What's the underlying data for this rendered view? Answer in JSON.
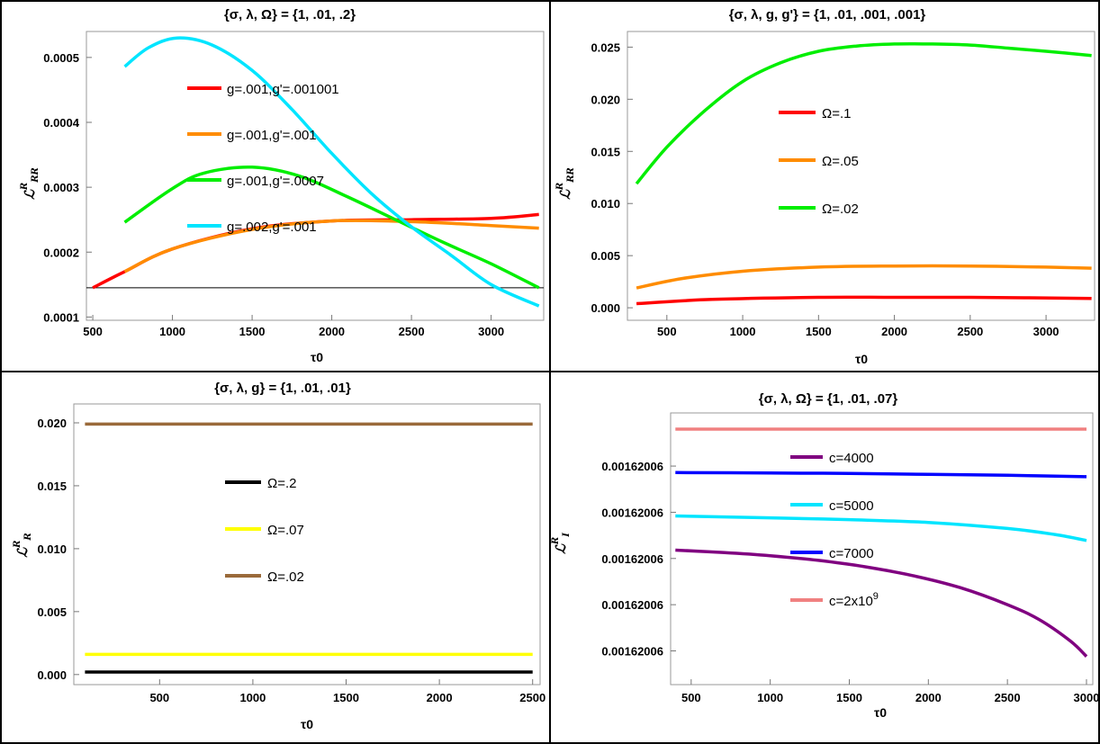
{
  "chart_data": [
    {
      "type": "line",
      "title": "{σ, λ, Ω} = {1, .01, .2}",
      "xlabel": "τ0",
      "ylabel": {
        "base": "ℒ",
        "sup": "R",
        "sub": "RR"
      },
      "xlim": [
        460,
        3330
      ],
      "ylim": [
        9.5e-05,
        0.00054
      ],
      "xticks": [
        500,
        1000,
        1500,
        2000,
        2500,
        3000
      ],
      "yticks": [
        0.0001,
        0.0002,
        0.0003,
        0.0004,
        0.0005
      ],
      "ytick_labels": [
        "0.0001",
        "0.0002",
        "0.0003",
        "0.0004",
        "0.0005"
      ],
      "hlines": [
        {
          "y": 0.000145,
          "color": "#000000"
        }
      ],
      "series": [
        {
          "name": "g=.001,g'=.001001",
          "color": "#ff0000",
          "x": [
            500,
            700,
            1000,
            1500,
            2000,
            2500,
            3000,
            3300
          ],
          "y": [
            0.000145,
            0.00017,
            0.000205,
            0.000236,
            0.000248,
            0.00025,
            0.000252,
            0.000258
          ]
        },
        {
          "name": "g=.001,g'=.001",
          "color": "#ff8c00",
          "x": [
            700,
            1000,
            1500,
            2000,
            2500,
            3000,
            3300
          ],
          "y": [
            0.00017,
            0.000205,
            0.000235,
            0.000248,
            0.000247,
            0.000241,
            0.000237
          ]
        },
        {
          "name": "g=.001,g'=.0007",
          "color": "#00ee00",
          "x": [
            700,
            1000,
            1200,
            1500,
            1800,
            2100,
            2400,
            2700,
            3000,
            3300
          ],
          "y": [
            0.000246,
            0.000298,
            0.000322,
            0.000331,
            0.000317,
            0.000285,
            0.00025,
            0.000215,
            0.000182,
            0.000145
          ]
        },
        {
          "name": "g=.002,g'=.001",
          "color": "#00e5ff",
          "x": [
            700,
            850,
            1030,
            1250,
            1500,
            1750,
            2000,
            2250,
            2500,
            2750,
            3000,
            3300
          ],
          "y": [
            0.000486,
            0.000515,
            0.00053,
            0.000519,
            0.00048,
            0.00042,
            0.000352,
            0.00029,
            0.000239,
            0.000195,
            0.00015,
            0.000117
          ]
        }
      ]
    },
    {
      "type": "line",
      "title": "{σ, λ, g, g'} = {1, .01, .001, .001}",
      "xlabel": "τ0",
      "ylabel": {
        "base": "ℒ",
        "sup": "R",
        "sub": "RR"
      },
      "xlim": [
        240,
        3320
      ],
      "ylim": [
        -0.0012,
        0.0265
      ],
      "xticks": [
        500,
        1000,
        1500,
        2000,
        2500,
        3000
      ],
      "yticks": [
        0,
        0.005,
        0.01,
        0.015,
        0.02,
        0.025
      ],
      "ytick_labels": [
        "0.000",
        "0.005",
        "0.010",
        "0.015",
        "0.020",
        "0.025"
      ],
      "hlines": [],
      "series": [
        {
          "name": "Ω=.1",
          "color": "#ff0000",
          "x": [
            300,
            800,
            1500,
            2000,
            2500,
            3300
          ],
          "y": [
            0.0004,
            0.0008,
            0.001,
            0.001,
            0.001,
            0.0009
          ]
        },
        {
          "name": "Ω=.05",
          "color": "#ff8c00",
          "x": [
            300,
            600,
            1000,
            1500,
            2000,
            2500,
            3000,
            3300
          ],
          "y": [
            0.0019,
            0.0028,
            0.0035,
            0.0039,
            0.004,
            0.004,
            0.0039,
            0.0038
          ]
        },
        {
          "name": "Ω=.02",
          "color": "#00ee00",
          "x": [
            300,
            500,
            750,
            1000,
            1250,
            1500,
            1750,
            2000,
            2250,
            2500,
            2750,
            3000,
            3300
          ],
          "y": [
            0.0119,
            0.0154,
            0.0189,
            0.0217,
            0.0235,
            0.0246,
            0.0251,
            0.0253,
            0.0253,
            0.0252,
            0.0249,
            0.0246,
            0.0242
          ]
        }
      ]
    },
    {
      "type": "line",
      "title": "{σ, λ, g} = {1, .01, .01}",
      "xlabel": "τ0",
      "ylabel": {
        "base": "ℒ",
        "sup": "R",
        "sub": "R"
      },
      "xlim": [
        40,
        2540
      ],
      "ylim": [
        -0.0008,
        0.0215
      ],
      "xticks": [
        500,
        1000,
        1500,
        2000,
        2500
      ],
      "yticks": [
        0,
        0.005,
        0.01,
        0.015,
        0.02
      ],
      "ytick_labels": [
        "0.000",
        "0.005",
        "0.010",
        "0.015",
        "0.020"
      ],
      "hlines": [],
      "series": [
        {
          "name": "Ω=.2",
          "color": "#000000",
          "x": [
            100,
            2500
          ],
          "y": [
            0.0002,
            0.0002
          ]
        },
        {
          "name": "Ω=.07",
          "color": "#ffff00",
          "x": [
            100,
            2500
          ],
          "y": [
            0.0016,
            0.0016
          ]
        },
        {
          "name": "Ω=.02",
          "color": "#9a6a3a",
          "x": [
            100,
            2500
          ],
          "y": [
            0.0199,
            0.0199
          ]
        }
      ]
    },
    {
      "type": "line",
      "title": "{σ, λ, Ω} = {1, .01, .07}",
      "xlabel": "τ0",
      "ylabel": {
        "base": "ℒ",
        "sup": "R",
        "sub": "I"
      },
      "xlim": [
        370,
        3040
      ],
      "ylim": [
        0.27,
        6.15
      ],
      "y_scale_note": "relative units; all tick labels read 0.00162006",
      "xticks": [
        500,
        1000,
        1500,
        2000,
        2500,
        3000
      ],
      "yticks": [
        1,
        2,
        3,
        4,
        5
      ],
      "ytick_labels": [
        "0.00162006",
        "0.00162006",
        "0.00162006",
        "0.00162006",
        "0.00162006"
      ],
      "hlines": [],
      "series": [
        {
          "name": "c=4000",
          "color": "#800080",
          "x": [
            400,
            700,
            1000,
            1300,
            1600,
            1900,
            2200,
            2500,
            2700,
            2900,
            3000
          ],
          "y": [
            3.18,
            3.13,
            3.06,
            2.96,
            2.82,
            2.63,
            2.37,
            2.0,
            1.68,
            1.21,
            0.88
          ]
        },
        {
          "name": "c=5000",
          "color": "#00e5ff",
          "x": [
            400,
            1000,
            1500,
            2000,
            2500,
            2800,
            3000
          ],
          "y": [
            3.92,
            3.88,
            3.84,
            3.78,
            3.65,
            3.52,
            3.39
          ]
        },
        {
          "name": "c=7000",
          "color": "#0000ff",
          "x": [
            400,
            1000,
            1500,
            2000,
            2500,
            3000
          ],
          "y": [
            4.86,
            4.85,
            4.84,
            4.82,
            4.8,
            4.77
          ]
        },
        {
          "name": "c=2x10^9",
          "color": "#f08080",
          "x": [
            400,
            3000
          ],
          "y": [
            5.8,
            5.8
          ]
        }
      ]
    }
  ],
  "panels": [
    {
      "legend": [
        {
          "label": "g=.001,g'=.001001"
        },
        {
          "label": "g=.001,g'=.001"
        },
        {
          "label": "g=.001,g'=.0007"
        },
        {
          "label": "g=.002,g'=.001"
        }
      ]
    },
    {
      "legend": [
        {
          "label": "Ω=.1"
        },
        {
          "label": "Ω=.05"
        },
        {
          "label": "Ω=.02"
        }
      ]
    },
    {
      "legend": [
        {
          "label": "Ω=.2"
        },
        {
          "label": "Ω=.07"
        },
        {
          "label": "Ω=.02"
        }
      ]
    },
    {
      "legend": [
        {
          "label": "c=4000"
        },
        {
          "label": "c=5000"
        },
        {
          "label": "c=7000"
        },
        {
          "label": "c=2x10",
          "sup": "9"
        }
      ]
    }
  ]
}
